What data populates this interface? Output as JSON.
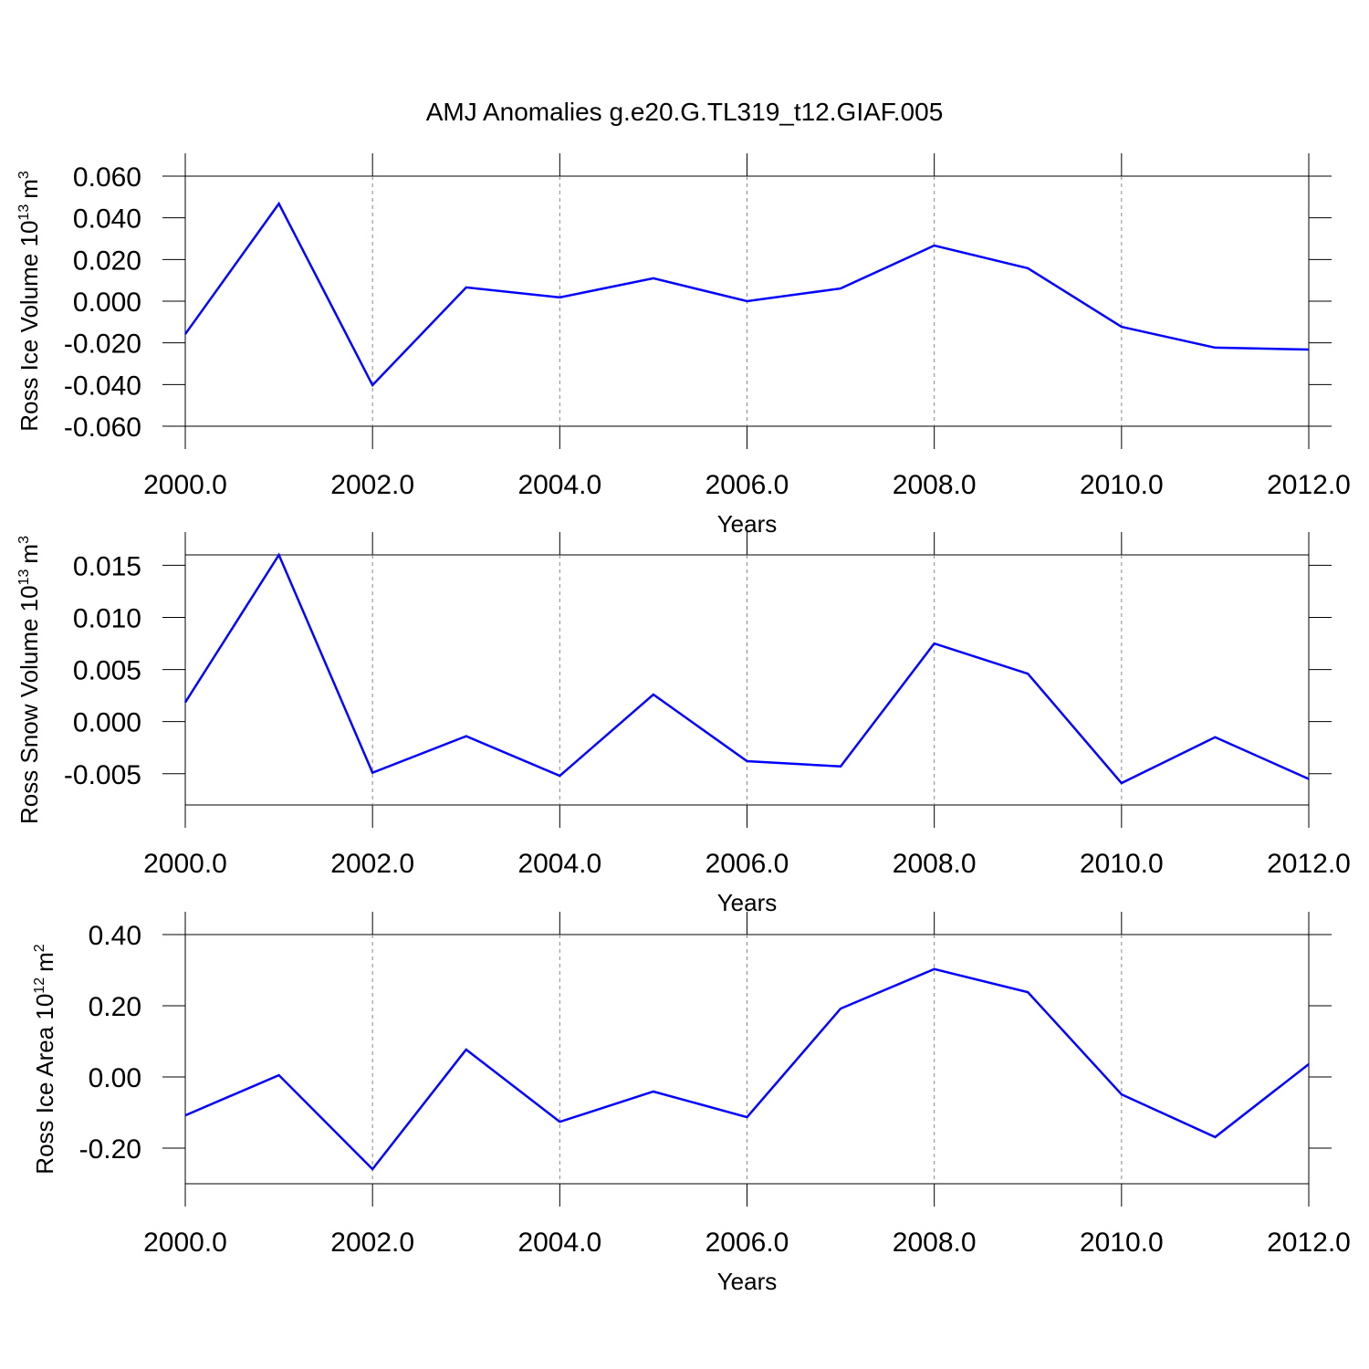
{
  "chart_data": [
    {
      "type": "line",
      "title": "AMJ Anomalies g.e20.G.TL319_t12.GIAF.005",
      "ylabel": [
        "Ross Ice Volume 10",
        "13",
        "m",
        "3"
      ],
      "xlabel": "Years",
      "x": [
        2000,
        2001,
        2002,
        2003,
        2004,
        2005,
        2006,
        2007,
        2008,
        2009,
        2010,
        2011,
        2012
      ],
      "series": [
        {
          "color": "#0000ff",
          "values": [
            -0.0158,
            0.0468,
            -0.0403,
            0.0066,
            0.0018,
            0.011,
            0.0,
            0.0061,
            0.0267,
            0.0158,
            -0.0123,
            -0.0223,
            -0.0232
          ]
        }
      ],
      "xlim": [
        2000,
        2012
      ],
      "xticks": [
        {
          "value": 2000,
          "label": "2000.0"
        },
        {
          "value": 2002,
          "label": "2002.0"
        },
        {
          "value": 2004,
          "label": "2004.0"
        },
        {
          "value": 2006,
          "label": "2006.0"
        },
        {
          "value": 2008,
          "label": "2008.0"
        },
        {
          "value": 2010,
          "label": "2010.0"
        },
        {
          "value": 2012,
          "label": "2012.0"
        }
      ],
      "ylim": [
        -0.06,
        0.06
      ],
      "yticks": [
        {
          "value": 0.06,
          "label": "0.060"
        },
        {
          "value": 0.04,
          "label": "0.040"
        },
        {
          "value": 0.02,
          "label": "0.020"
        },
        {
          "value": 0,
          "label": "0.000"
        },
        {
          "value": -0.02,
          "label": "-0.020"
        },
        {
          "value": -0.04,
          "label": "-0.040"
        },
        {
          "value": -0.06,
          "label": "-0.060"
        }
      ],
      "grid": "x-dashed"
    },
    {
      "type": "line",
      "ylabel": [
        "Ross Snow Volume 10",
        "13",
        "m",
        "3"
      ],
      "xlabel": "Years",
      "x": [
        2000,
        2001,
        2002,
        2003,
        2004,
        2005,
        2006,
        2007,
        2008,
        2009,
        2010,
        2011,
        2012
      ],
      "series": [
        {
          "color": "#0000ff",
          "values": [
            0.00185,
            0.016,
            -0.0049,
            -0.0014,
            -0.0052,
            0.0026,
            -0.0038,
            -0.0043,
            0.0075,
            0.0046,
            -0.0059,
            -0.0015,
            -0.0055
          ]
        }
      ],
      "xlim": [
        2000,
        2012
      ],
      "xticks": [
        {
          "value": 2000,
          "label": "2000.0"
        },
        {
          "value": 2002,
          "label": "2002.0"
        },
        {
          "value": 2004,
          "label": "2004.0"
        },
        {
          "value": 2006,
          "label": "2006.0"
        },
        {
          "value": 2008,
          "label": "2008.0"
        },
        {
          "value": 2010,
          "label": "2010.0"
        },
        {
          "value": 2012,
          "label": "2012.0"
        }
      ],
      "ylim": [
        -0.008,
        0.016
      ],
      "yticks": [
        {
          "value": 0.015,
          "label": "0.015"
        },
        {
          "value": 0.01,
          "label": "0.010"
        },
        {
          "value": 0.005,
          "label": "0.005"
        },
        {
          "value": 0,
          "label": "0.000"
        },
        {
          "value": -0.005,
          "label": "-0.005"
        }
      ],
      "grid": "x-dashed"
    },
    {
      "type": "line",
      "ylabel": [
        "Ross Ice Area 10",
        "12",
        "m",
        "2"
      ],
      "xlabel": "Years",
      "x": [
        2000,
        2001,
        2002,
        2003,
        2004,
        2005,
        2006,
        2007,
        2008,
        2009,
        2010,
        2011,
        2012
      ],
      "series": [
        {
          "color": "#0000ff",
          "values": [
            -0.108,
            0.005,
            -0.259,
            0.077,
            -0.126,
            -0.041,
            -0.113,
            0.192,
            0.303,
            0.238,
            -0.049,
            -0.169,
            0.036
          ]
        }
      ],
      "xlim": [
        2000,
        2012
      ],
      "xticks": [
        {
          "value": 2000,
          "label": "2000.0"
        },
        {
          "value": 2002,
          "label": "2002.0"
        },
        {
          "value": 2004,
          "label": "2004.0"
        },
        {
          "value": 2006,
          "label": "2006.0"
        },
        {
          "value": 2008,
          "label": "2008.0"
        },
        {
          "value": 2010,
          "label": "2010.0"
        },
        {
          "value": 2012,
          "label": "2012.0"
        }
      ],
      "ylim": [
        -0.3,
        0.4
      ],
      "yticks": [
        {
          "value": 0.4,
          "label": "0.40"
        },
        {
          "value": 0.2,
          "label": "0.20"
        },
        {
          "value": 0,
          "label": "0.00"
        },
        {
          "value": -0.2,
          "label": "-0.20"
        }
      ],
      "grid": "x-dashed"
    }
  ]
}
